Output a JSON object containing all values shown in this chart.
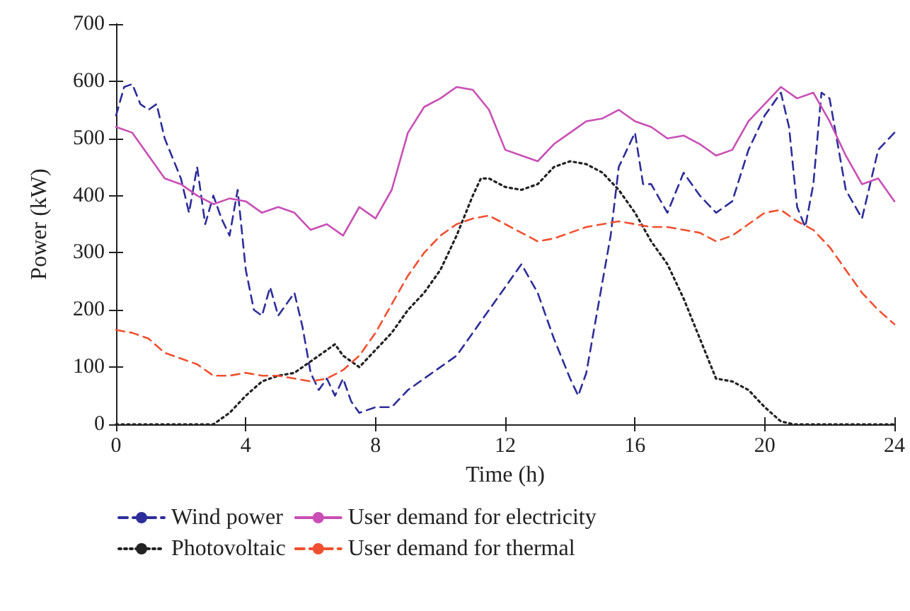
{
  "chart_data": {
    "type": "line",
    "xlabel": "Time (h)",
    "ylabel": "Power (kW)",
    "xlim": [
      0,
      24
    ],
    "xticks": [
      0,
      4,
      8,
      12,
      16,
      20,
      24
    ],
    "ylim": [
      0,
      700
    ],
    "yticks": [
      0,
      100,
      200,
      300,
      400,
      500,
      600,
      700
    ],
    "grid": false,
    "legend": "bottom",
    "marker": "none",
    "series": [
      {
        "name": "Wind power",
        "color": "#2e2d9a",
        "line_style": "dashed",
        "x": [
          0,
          0.25,
          0.5,
          0.75,
          1,
          1.25,
          1.5,
          2,
          2.25,
          2.5,
          2.75,
          3,
          3.25,
          3.5,
          3.75,
          4,
          4.25,
          4.5,
          4.75,
          5,
          5.5,
          5.75,
          6,
          6.25,
          6.5,
          6.75,
          7,
          7.25,
          7.5,
          8,
          8.5,
          9,
          9.5,
          10,
          10.5,
          11,
          11.5,
          12,
          12.5,
          13,
          13.5,
          14,
          14.25,
          14.5,
          15,
          15.25,
          15.5,
          15.75,
          16,
          16.25,
          16.5,
          17,
          17.5,
          18,
          18.5,
          19,
          19.5,
          20,
          20.5,
          20.75,
          21,
          21.25,
          21.5,
          21.75,
          22,
          22.5,
          23,
          23.5,
          24
        ],
        "values": [
          540,
          590,
          595,
          560,
          550,
          560,
          500,
          430,
          370,
          450,
          350,
          400,
          360,
          330,
          410,
          270,
          200,
          190,
          240,
          190,
          230,
          170,
          90,
          60,
          80,
          50,
          80,
          40,
          20,
          30,
          30,
          60,
          80,
          100,
          120,
          160,
          200,
          240,
          280,
          230,
          150,
          80,
          50,
          90,
          250,
          330,
          450,
          480,
          510,
          420,
          420,
          370,
          440,
          400,
          370,
          390,
          480,
          540,
          580,
          520,
          380,
          345,
          420,
          580,
          570,
          410,
          360,
          480,
          510
        ]
      },
      {
        "name": "Photovoltaic",
        "color": "#222222",
        "line_style": "dotted",
        "x": [
          0,
          3,
          3.5,
          4,
          4.5,
          5,
          5.5,
          6,
          6.5,
          6.75,
          7,
          7.5,
          8,
          8.5,
          9,
          9.5,
          10,
          10.5,
          11,
          11.25,
          11.5,
          12,
          12.5,
          13,
          13.5,
          14,
          14.5,
          15,
          15.5,
          16,
          16.5,
          17,
          17.5,
          18,
          18.5,
          19,
          19.5,
          20,
          20.5,
          20.9,
          24
        ],
        "values": [
          0,
          0,
          20,
          50,
          75,
          85,
          90,
          110,
          130,
          140,
          120,
          100,
          130,
          160,
          200,
          230,
          270,
          330,
          400,
          430,
          430,
          415,
          410,
          420,
          450,
          460,
          455,
          440,
          410,
          370,
          320,
          280,
          220,
          150,
          80,
          75,
          60,
          30,
          5,
          0,
          0
        ]
      },
      {
        "name": "User demand for electricity",
        "color": "#c84fb5",
        "line_style": "solid",
        "x": [
          0,
          0.5,
          1,
          1.5,
          2,
          2.5,
          3,
          3.5,
          4,
          4.5,
          5,
          5.5,
          6,
          6.5,
          7,
          7.5,
          8,
          8.5,
          9,
          9.5,
          10,
          10.5,
          11,
          11.5,
          12,
          12.5,
          13,
          13.5,
          14,
          14.5,
          15,
          15.5,
          16,
          16.5,
          17,
          17.5,
          18,
          18.5,
          19,
          19.5,
          20,
          20.5,
          21,
          21.5,
          22,
          22.5,
          23,
          23.5,
          24
        ],
        "values": [
          520,
          510,
          470,
          430,
          420,
          400,
          385,
          395,
          390,
          370,
          380,
          370,
          340,
          350,
          330,
          380,
          360,
          410,
          510,
          555,
          570,
          590,
          585,
          550,
          480,
          470,
          460,
          490,
          510,
          530,
          535,
          550,
          530,
          520,
          500,
          505,
          490,
          470,
          480,
          530,
          560,
          590,
          570,
          580,
          530,
          470,
          420,
          430,
          390
        ]
      },
      {
        "name": "User demand for thermal",
        "color": "#f05030",
        "line_style": "dashed",
        "x": [
          0,
          0.5,
          1,
          1.5,
          2,
          2.5,
          3,
          3.5,
          4,
          4.5,
          5,
          5.5,
          6,
          6.5,
          7,
          7.5,
          8,
          8.5,
          9,
          9.5,
          10,
          10.5,
          11,
          11.5,
          12,
          12.5,
          13,
          13.5,
          14,
          14.5,
          15,
          15.5,
          16,
          16.5,
          17,
          17.5,
          18,
          18.5,
          19,
          19.5,
          20,
          20.5,
          21,
          21.5,
          22,
          22.5,
          23,
          23.5,
          24
        ],
        "values": [
          165,
          160,
          150,
          125,
          115,
          105,
          85,
          85,
          90,
          85,
          85,
          80,
          75,
          80,
          95,
          120,
          160,
          210,
          260,
          300,
          330,
          350,
          360,
          365,
          350,
          335,
          320,
          325,
          335,
          345,
          350,
          355,
          350,
          345,
          345,
          340,
          335,
          320,
          330,
          350,
          370,
          375,
          355,
          340,
          310,
          270,
          230,
          200,
          175
        ]
      }
    ]
  }
}
